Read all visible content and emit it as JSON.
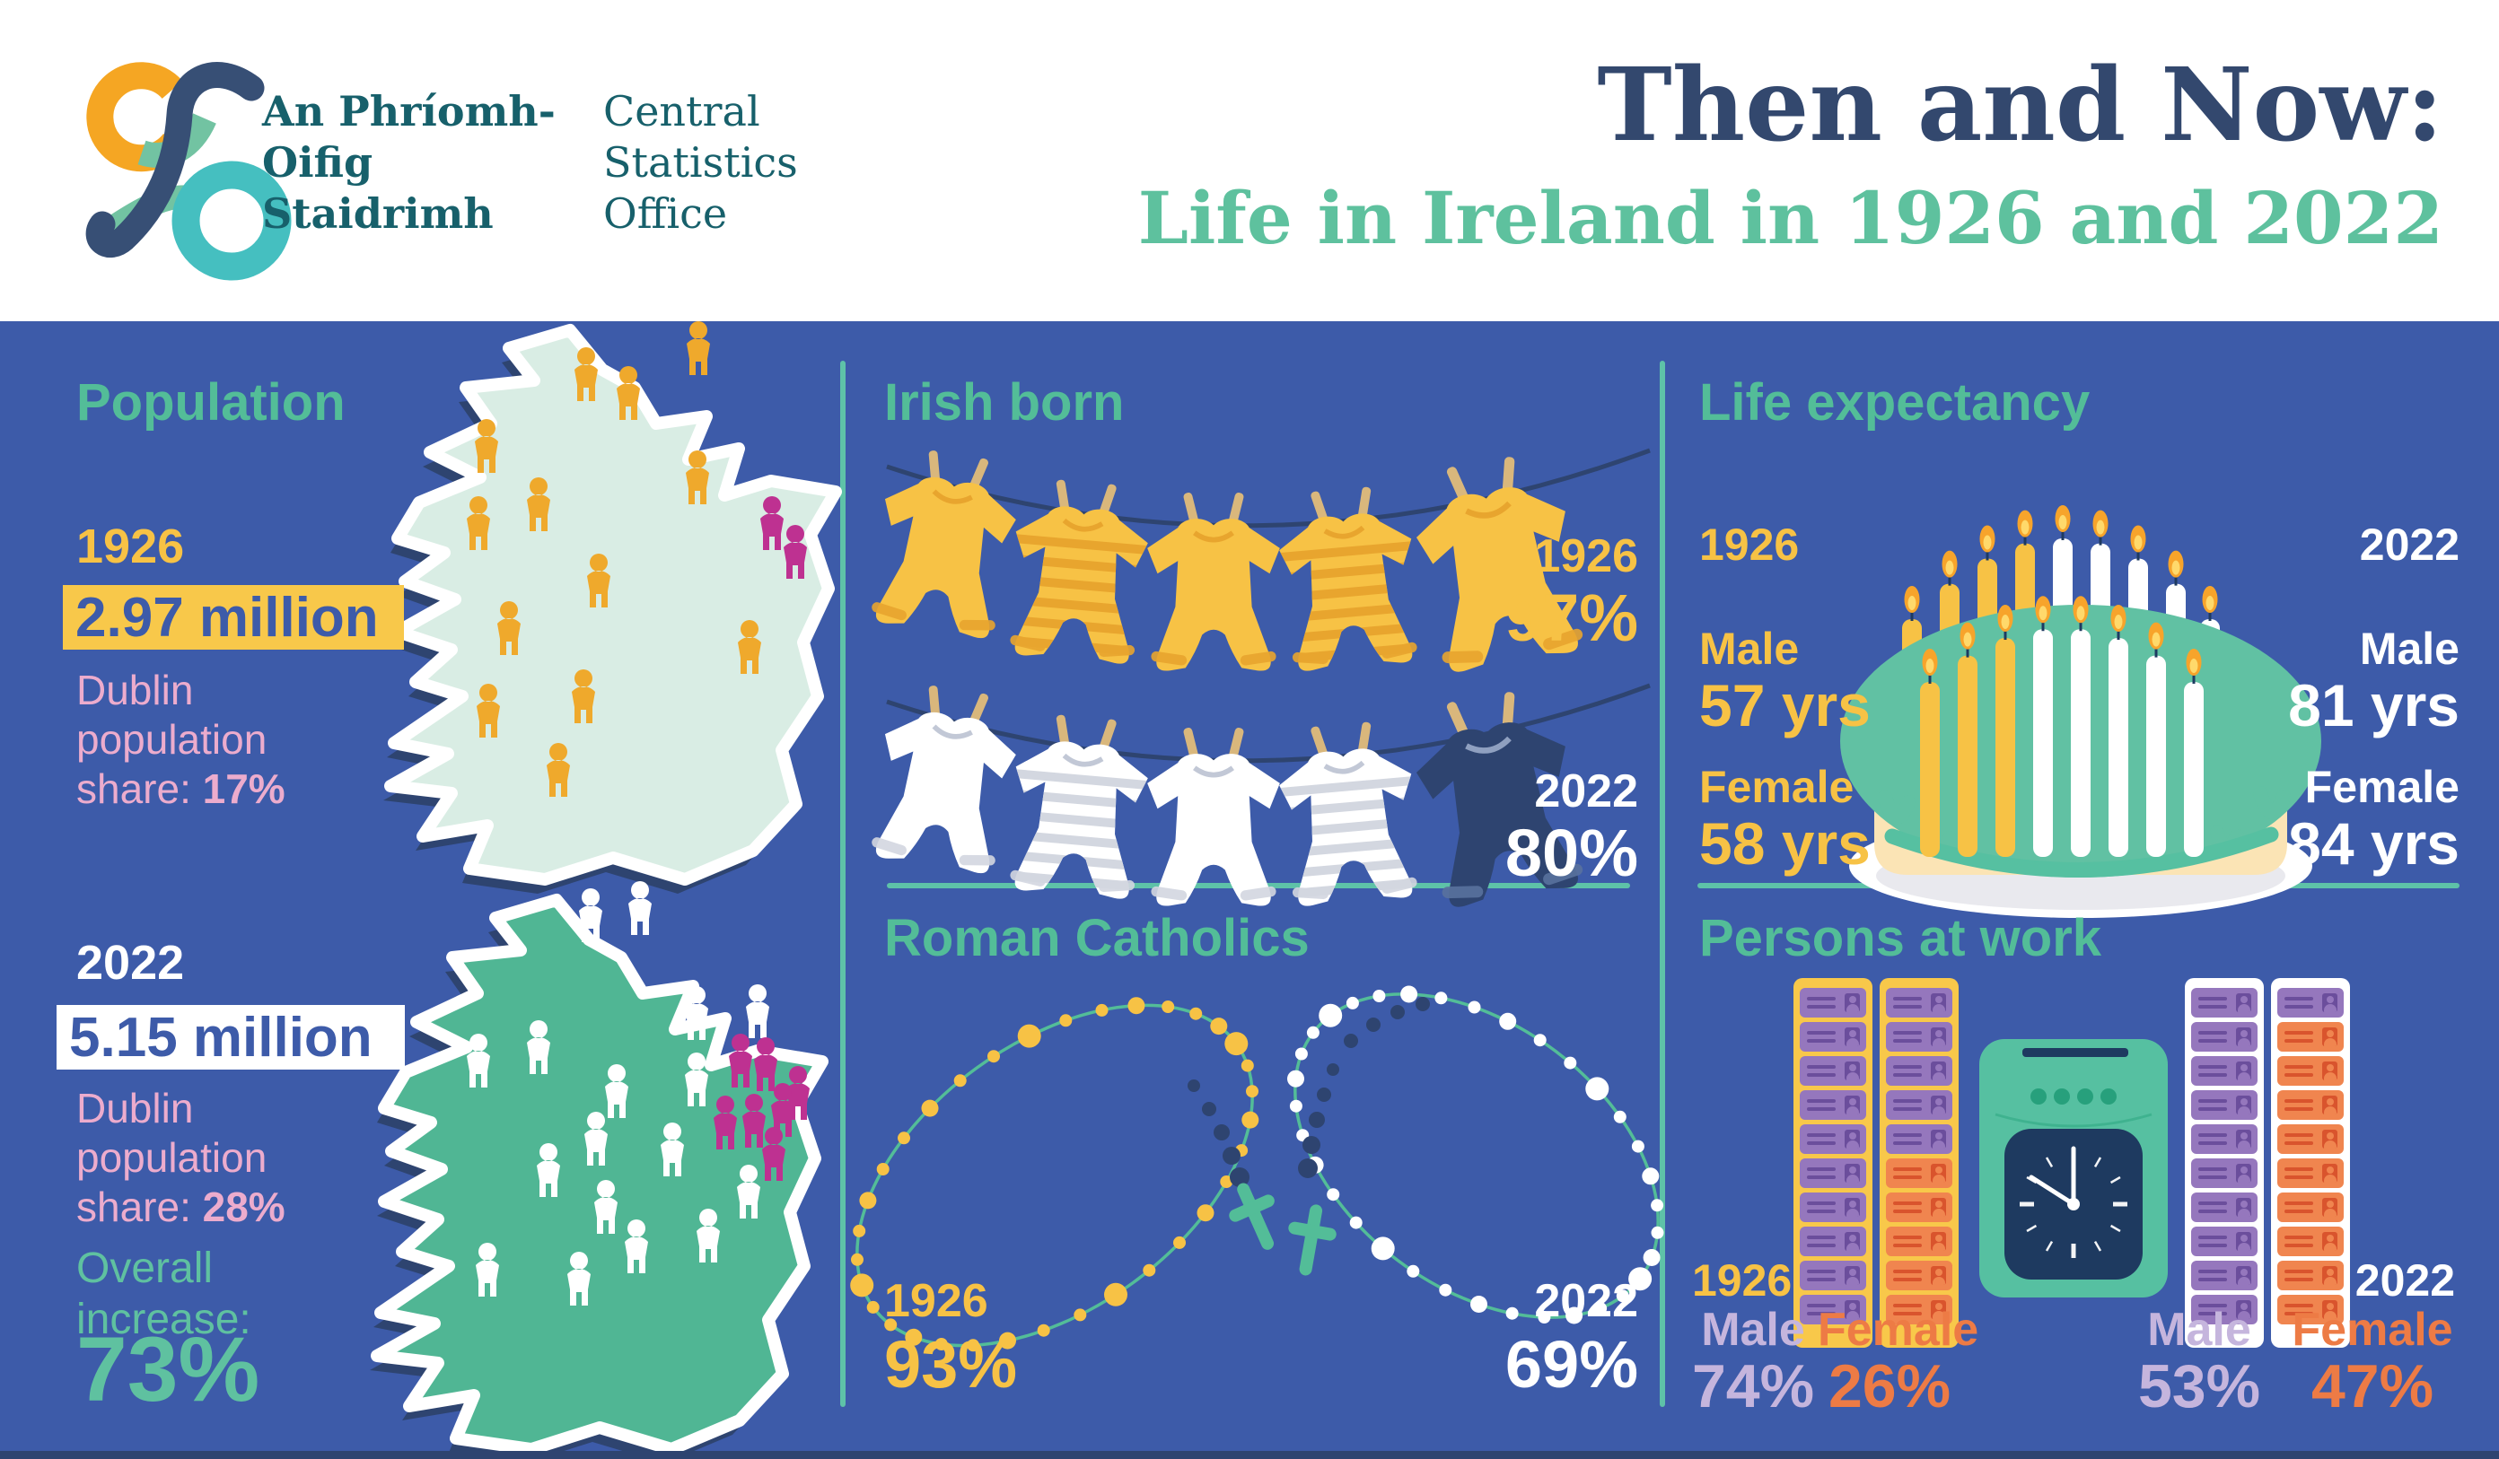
{
  "header": {
    "logo_irish_name": "An Phríomh-Oifig Staidrimh",
    "logo_english_name": "Central Statistics Office",
    "title": "Then and Now:",
    "subtitle": "Life in Ireland in 1926 and 2022"
  },
  "population": {
    "heading": "Population",
    "y1926": {
      "year": "1926",
      "value": "2.97 million",
      "share_label": "Dublin population share: ",
      "share_value": "17%"
    },
    "y2022": {
      "year": "2022",
      "value": "5.15 million",
      "share_label": "Dublin population share: ",
      "share_value": "28%"
    },
    "increase_label": "Overall increase:",
    "increase_value": "73%",
    "map_1926_people": {
      "rural": 13,
      "dublin": 2
    },
    "map_2022_people": {
      "rural": 17,
      "dublin": 7
    }
  },
  "irish_born": {
    "heading": "Irish born",
    "y1926": {
      "year": "1926",
      "value": "97%"
    },
    "y2022": {
      "year": "2022",
      "value": "80%"
    }
  },
  "roman_catholics": {
    "heading": "Roman Catholics",
    "y1926": {
      "year": "1926",
      "value": "93%"
    },
    "y2022": {
      "year": "2022",
      "value": "69%"
    }
  },
  "life_expectancy": {
    "heading": "Life expectancy",
    "y1926": {
      "year": "1926",
      "male_label": "Male",
      "male_value": "57 yrs",
      "female_label": "Female",
      "female_value": "58 yrs"
    },
    "y2022": {
      "year": "2022",
      "male_label": "Male",
      "male_value": "81 yrs",
      "female_label": "Female",
      "female_value": "84 yrs"
    }
  },
  "persons_at_work": {
    "heading": "Persons at work",
    "y1926": {
      "year": "1926",
      "male_label": "Male",
      "male_value": "74%",
      "female_label": "Female",
      "female_value": "26%",
      "racks": [
        "MMMMMMMMMM",
        "MMMMMFFFFF"
      ]
    },
    "y2022": {
      "year": "2022",
      "male_label": "Male",
      "male_value": "53%",
      "female_label": "Female",
      "female_value": "47%",
      "racks": [
        "MMMMMMMMMM",
        "MFFFFFFFFF"
      ]
    }
  },
  "chart_data": {
    "type": "table",
    "title": "Then and Now: Life in Ireland in 1926 and 2022",
    "categories": [
      "Population",
      "Dublin population share",
      "Irish born",
      "Roman Catholics",
      "Life expectancy (male)",
      "Life expectancy (female)",
      "Persons at work (male)",
      "Persons at work (female)"
    ],
    "series": [
      {
        "name": "1926",
        "values": [
          "2.97 million",
          "17%",
          "97%",
          "93%",
          "57 yrs",
          "58 yrs",
          "74%",
          "26%"
        ]
      },
      {
        "name": "2022",
        "values": [
          "5.15 million",
          "28%",
          "80%",
          "69%",
          "81 yrs",
          "84 yrs",
          "53%",
          "47%"
        ]
      }
    ],
    "annotations": [
      "Overall population increase: 73%"
    ]
  },
  "colors": {
    "background_blue": "#3D5BA9",
    "navy": "#2E4470",
    "title_navy": "#33486E",
    "heading_green": "#53BD98",
    "divider_teal": "#5EC2A8",
    "subtitle_green": "#5EC19E",
    "yellow": "#F7C245",
    "deep_yellow": "#E8A52E",
    "pink_text": "#ECACCD",
    "magenta": "#BE3191",
    "mint_map": "#D9EDE4",
    "green_map": "#50B694",
    "lavender": "#C5B5DD",
    "orange": "#ED7B45",
    "purple_card": "#9577BD",
    "purple_card_dark": "#6B4E9C",
    "orange_card": "#F0854F",
    "orange_card_dark": "#D9542D",
    "rack_yellow": "#F8C84A",
    "clock_green": "#56C0A1",
    "clock_face_navy": "#1E3A60",
    "cream": "#FBE4B5",
    "clothespin_tan": "#D9B77C",
    "logo_teal_text": "#17606B",
    "logo_orange": "#F5A623",
    "logo_turquoise": "#45BFC0",
    "logo_navy": "#374F75",
    "logo_sage": "#72C3A2",
    "cake_green": "#61C1A3",
    "white": "#FFFFFF"
  }
}
